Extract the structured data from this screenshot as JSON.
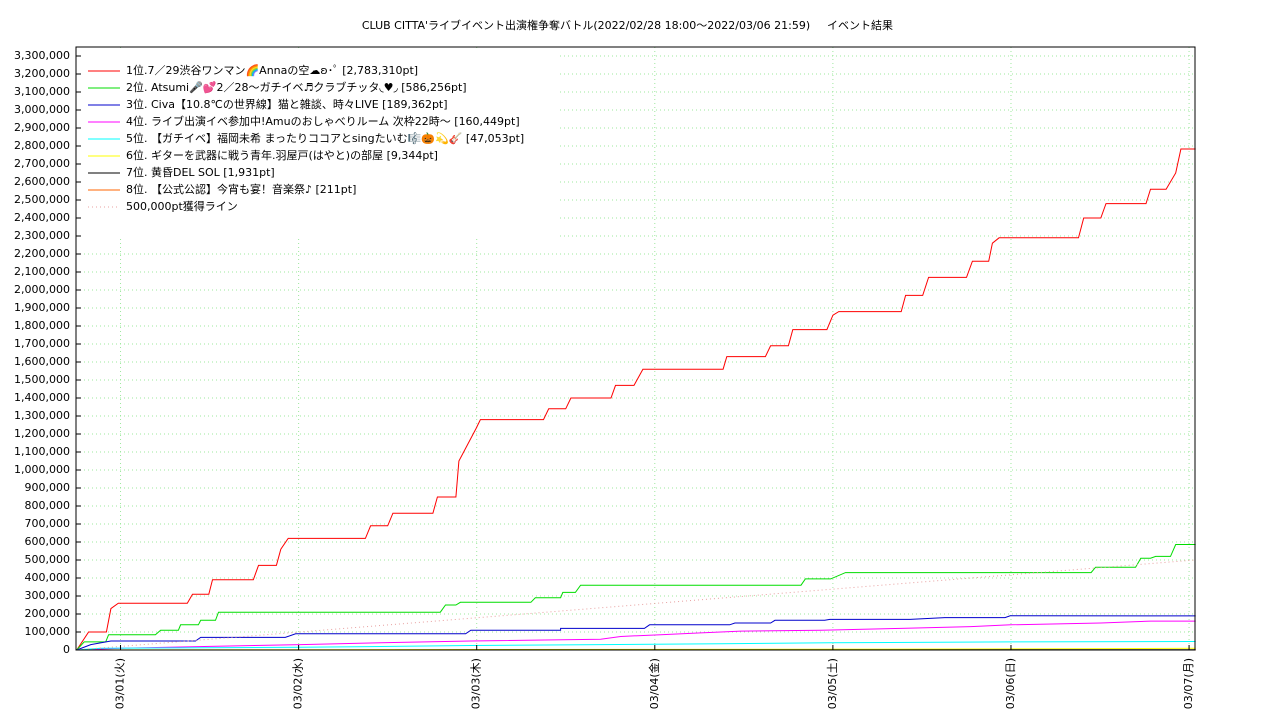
{
  "chart_data": {
    "type": "line",
    "title": "CLUB CITTA'ライブイベント出演権争奪バトル(2022/02/28 18:00〜2022/03/06 21:59)",
    "subtitle": "イベント結果",
    "xlim": [
      -6,
      144.8
    ],
    "ylim": [
      0,
      3350000
    ],
    "xticks": [
      {
        "value": 0,
        "label": "03/01(火)"
      },
      {
        "value": 24,
        "label": "03/02(水)"
      },
      {
        "value": 48,
        "label": "03/03(木)"
      },
      {
        "value": 72,
        "label": "03/04(金)"
      },
      {
        "value": 96,
        "label": "03/05(土)"
      },
      {
        "value": 120,
        "label": "03/06(日)"
      },
      {
        "value": 144,
        "label": "03/07(月)"
      }
    ],
    "yticks": [
      0,
      {
        "value": 100000,
        "label": "100,000"
      },
      {
        "value": 200000,
        "label": "200,000"
      },
      {
        "value": 300000,
        "label": "300,000"
      },
      {
        "value": 400000,
        "label": "400,000"
      },
      {
        "value": 500000,
        "label": "500,000"
      },
      {
        "value": 600000,
        "label": "600,000"
      },
      {
        "value": 700000,
        "label": "700,000"
      },
      {
        "value": 800000,
        "label": "800,000"
      },
      {
        "value": 900000,
        "label": "900,000"
      },
      {
        "value": 1000000,
        "label": "1,000,000"
      },
      {
        "value": 1100000,
        "label": "1,100,000"
      },
      {
        "value": 1200000,
        "label": "1,200,000"
      },
      {
        "value": 1300000,
        "label": "1,300,000"
      },
      {
        "value": 1400000,
        "label": "1,400,000"
      },
      {
        "value": 1500000,
        "label": "1,500,000"
      },
      {
        "value": 1600000,
        "label": "1,600,000"
      },
      {
        "value": 1700000,
        "label": "1,700,000"
      },
      {
        "value": 1800000,
        "label": "1,800,000"
      },
      {
        "value": 1900000,
        "label": "1,900,000"
      },
      {
        "value": 2000000,
        "label": "2,000,000"
      },
      {
        "value": 2100000,
        "label": "2,100,000"
      },
      {
        "value": 2200000,
        "label": "2,200,000"
      },
      {
        "value": 2300000,
        "label": "2,300,000"
      },
      {
        "value": 2400000,
        "label": "2,400,000"
      },
      {
        "value": 2500000,
        "label": "2,500,000"
      },
      {
        "value": 2600000,
        "label": "2,600,000"
      },
      {
        "value": 2700000,
        "label": "2,700,000"
      },
      {
        "value": 2800000,
        "label": "2,800,000"
      },
      {
        "value": 2900000,
        "label": "2,900,000"
      },
      {
        "value": 3000000,
        "label": "3,000,000"
      },
      {
        "value": 3100000,
        "label": "3,100,000"
      },
      {
        "value": 3200000,
        "label": "3,200,000"
      },
      {
        "value": 3300000,
        "label": "3,300,000"
      }
    ],
    "grid": true,
    "legend": "upper left",
    "series": [
      {
        "name": "1位.7／29渋谷ワンマン🌈Annaの空☁ʚ･ﾟ [2,783,310pt]",
        "color": "#ff0000",
        "x": [
          -5.9,
          -4.3,
          -1.9,
          -1.3,
          -0.3,
          9.0,
          9.7,
          11.9,
          12.4,
          17.9,
          18.6,
          21.0,
          21.6,
          22.6,
          33.0,
          33.7,
          36.0,
          36.7,
          42.1,
          42.7,
          45.2,
          45.6,
          47.9,
          48.5,
          57.0,
          57.7,
          60.0,
          60.7,
          66.1,
          66.7,
          69.2,
          70.4,
          81.2,
          81.7,
          86.9,
          87.6,
          90.0,
          90.6,
          95.2,
          96.0,
          96.8,
          105.2,
          105.8,
          108.1,
          108.9,
          114.0,
          114.8,
          117.0,
          117.5,
          118.4,
          129.1,
          129.8,
          132.1,
          132.8,
          138.2,
          138.8,
          140.9,
          142.2,
          142.9,
          144.9
        ],
        "values": [
          0,
          100000,
          100000,
          230000,
          260000,
          260000,
          310000,
          310000,
          390000,
          390000,
          470000,
          470000,
          560000,
          620000,
          620000,
          690000,
          690000,
          760000,
          760000,
          850000,
          850000,
          1050000,
          1230000,
          1280000,
          1280000,
          1340000,
          1340000,
          1400000,
          1400000,
          1470000,
          1470000,
          1560000,
          1560000,
          1630000,
          1630000,
          1690000,
          1690000,
          1780000,
          1780000,
          1860000,
          1880000,
          1880000,
          1970000,
          1970000,
          2070000,
          2070000,
          2160000,
          2160000,
          2260000,
          2290000,
          2290000,
          2400000,
          2400000,
          2480000,
          2480000,
          2560000,
          2560000,
          2650000,
          2783310,
          2783310
        ]
      },
      {
        "name": "2位. Atsumi🎤💕2／28〜ガチイベ♬クラブチッタ◟♥︎◞ [586,256pt]",
        "color": "#00dd00",
        "x": [
          -5.9,
          -4.9,
          -2.0,
          -1.6,
          4.7,
          5.4,
          7.8,
          8.1,
          10.5,
          10.8,
          12.8,
          13.2,
          43.1,
          43.8,
          45.2,
          45.8,
          55.3,
          55.9,
          59.3,
          59.6,
          61.3,
          62.0,
          91.7,
          92.3,
          95.7,
          97.7,
          130.8,
          131.4,
          136.8,
          137.5,
          138.8,
          139.5,
          141.5,
          142.2,
          144.9
        ],
        "values": [
          0,
          45000,
          45000,
          85000,
          85000,
          110000,
          110000,
          140000,
          140000,
          165000,
          165000,
          210000,
          210000,
          250000,
          250000,
          265000,
          265000,
          290000,
          290000,
          320000,
          320000,
          360000,
          360000,
          395000,
          395000,
          430000,
          430000,
          460000,
          460000,
          510000,
          510000,
          520000,
          520000,
          586256,
          586256
        ]
      },
      {
        "name": "3位. Civa【10.8℃の世界線】猫と雑談、時々LIVE [189,362pt]",
        "color": "#0000cc",
        "x": [
          -5.9,
          -4.0,
          -1.3,
          10.1,
          10.8,
          22.2,
          23.6,
          46.5,
          47.2,
          59.3,
          59.3,
          70.6,
          71.3,
          82.1,
          82.8,
          87.6,
          88.2,
          94.9,
          95.6,
          106.4,
          111.1,
          119.2,
          119.9,
          144.9
        ],
        "values": [
          0,
          30000,
          50000,
          50000,
          70000,
          70000,
          90000,
          90000,
          110000,
          110000,
          120000,
          120000,
          140000,
          140000,
          150000,
          150000,
          165000,
          165000,
          170000,
          170000,
          180000,
          180000,
          190000,
          189362
        ]
      },
      {
        "name": "4位. ライブ出演イベ参加中!Amuのおしゃべりルーム 次枠22時〜 [160,449pt]",
        "color": "#ff00ff",
        "x": [
          -5.9,
          0,
          12.1,
          24.3,
          35.1,
          47.2,
          64.7,
          67.4,
          72.8,
          78.2,
          83.6,
          94.4,
          105.2,
          114.6,
          120.0,
          132.1,
          138.8,
          144.9
        ],
        "values": [
          0,
          10000,
          20000,
          30000,
          40000,
          50000,
          60000,
          75000,
          85000,
          95000,
          105000,
          110000,
          120000,
          130000,
          140000,
          150000,
          160449,
          160449
        ]
      },
      {
        "name": "5位. 【ガチイベ】福岡未希 まったりココアとsingたいむ🎼🎃💫🎸 [47,053pt]",
        "color": "#00ffff",
        "x": [
          -5.9,
          -2.7,
          24.3,
          47.2,
          64.7,
          80.9,
          95.6,
          120.0,
          144.9
        ],
        "values": [
          0,
          10000,
          15000,
          25000,
          30000,
          35000,
          40000,
          45000,
          47053
        ]
      },
      {
        "name": "6位. ギターを武器に戦う青年.羽屋戸(はやと)の部屋 [9,344pt]",
        "color": "#ffff00",
        "x": [
          -5.9,
          24.3,
          72.8,
          120.0,
          144.9
        ],
        "values": [
          0,
          1500,
          3500,
          6000,
          9344
        ]
      },
      {
        "name": "7位. 黄昏DEL SOL [1,931pt]",
        "color": "#000000",
        "x": [
          -5.9,
          72.8,
          144.9
        ],
        "values": [
          0,
          800,
          1931
        ]
      },
      {
        "name": "8位. 【公式公認】今宵も宴！音楽祭♪ [211pt]",
        "color": "#ff6600",
        "x": [
          -5.9,
          144.9
        ],
        "values": [
          0,
          211
        ]
      },
      {
        "name": "500,000pt獲得ライン",
        "color": "#e8a0a0",
        "dash": "dotted",
        "x": [
          -6,
          144.8
        ],
        "values": [
          0,
          500000
        ]
      }
    ]
  }
}
